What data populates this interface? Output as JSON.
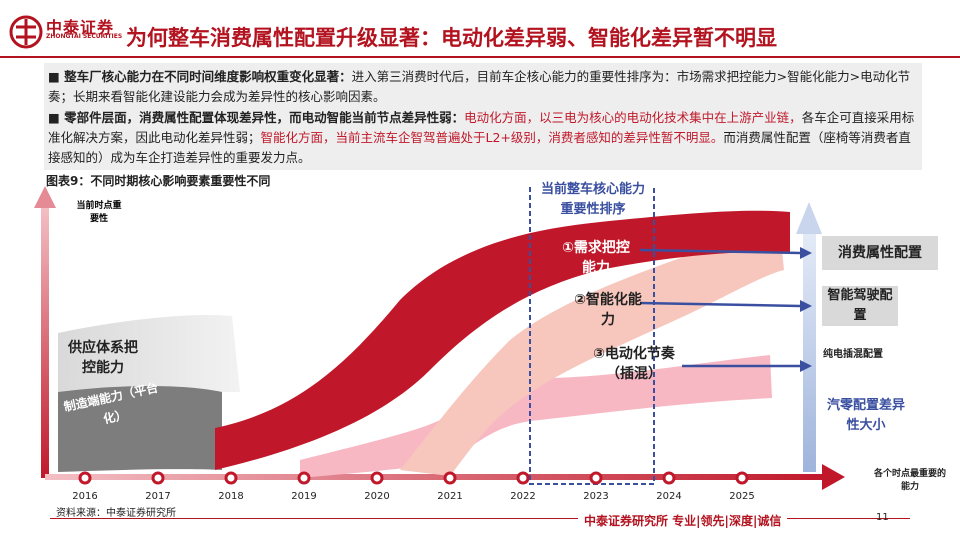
{
  "header": {
    "logo_cn": "中泰证券",
    "logo_en": "ZHONGTAI SECURITIES",
    "title": "为何整车消费属性配置升级显著：电动化差异弱、智能化差异暂不明显"
  },
  "summary": {
    "p1_bold": "■ 整车厂核心能力在不同时间维度影响权重变化显著：",
    "p1_text": "进入第三消费时代后，目前车企核心能力的重要性排序为：市场需求把控能力>智能化能力>电动化节奏；长期来看智能化建设能力会成为差异性的核心影响因素。",
    "p2_bold": "■ 零部件层面，消费属性配置体现差异性，而电动智能当前节点差异性弱：",
    "p2_red": "电动化方面，以三电为核心的电动化技术集中在上游产业链，",
    "p2_text1": "各车企可直接采用标准化解决方案，因此电动化差异性弱；",
    "p2_red2": "智能化方面，当前主流车企智驾普遍处于L2+级别，消费者感知的差异性暂不明显。",
    "p2_text2": "而消费属性配置（座椅等消费者直接感知的）成为车企打造差异性的重要发力点。"
  },
  "figure": {
    "title": "图表9：不同时期核心影响要素重要性不同",
    "y_axis_label": "当前时点重要性",
    "x_axis_label": "各个时点最重要的能力",
    "years": [
      "2016",
      "2017",
      "2018",
      "2019",
      "2020",
      "2021",
      "2022",
      "2023",
      "2024",
      "2025"
    ],
    "ranking_box": "当前整车核心能力重要性排序",
    "supply_label": "供应体系把控能力",
    "manufacturing_label": "制造端能力（平台化）",
    "item1": "①需求把控能力",
    "item2": "②智能化能力",
    "item3": "③电动化节奏（插混）",
    "right_boxes": [
      "消费属性配置",
      "智能驾驶配置",
      "纯电插混配置"
    ],
    "right_axis_label": "汽零配置差异性大小",
    "colors": {
      "red": "#c0182a",
      "pink": "#f7b8c4",
      "peach": "#f7c7bd",
      "gray": "#bfbfbf",
      "blue": "#3a4fa0"
    }
  },
  "footer": {
    "source": "资料来源：中泰证券研究所",
    "org": "中泰证券研究所 专业|领先|深度|诚信",
    "page": "11"
  }
}
